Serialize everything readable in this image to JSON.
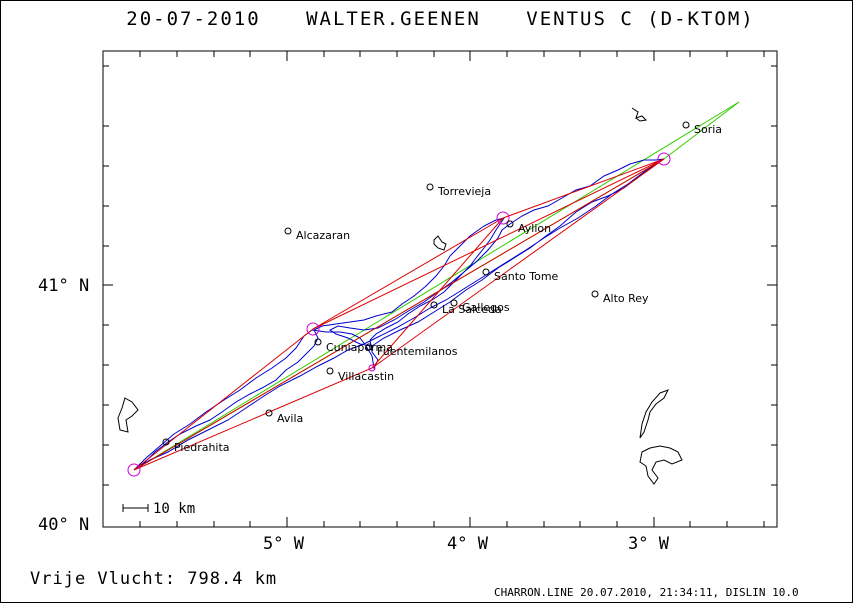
{
  "header": {
    "date": "20-07-2010",
    "pilot": "WALTER.GEENEN",
    "glider": "VENTUS C (D-KTOM)"
  },
  "axes": {
    "lat_labels": [
      "41° N",
      "40° N"
    ],
    "lon_labels": [
      "5° W",
      "4° W",
      "3° W"
    ]
  },
  "scale_label": "10 km",
  "towns": [
    {
      "name": "Soria"
    },
    {
      "name": "Torrevieja"
    },
    {
      "name": "Aylion"
    },
    {
      "name": "Alcazaran"
    },
    {
      "name": "Santo Tome"
    },
    {
      "name": "Alto Rey"
    },
    {
      "name": "La Salceda"
    },
    {
      "name": "Gallegos"
    },
    {
      "name": "Cuniaporma"
    },
    {
      "name": "Fuentemilanos"
    },
    {
      "name": "Villacastin"
    },
    {
      "name": "Avila"
    },
    {
      "name": "Piedrahita"
    }
  ],
  "colors": {
    "track": "#0000cc",
    "task": "#dd0000",
    "free": "#33cc00",
    "turnpoint": "#cc00cc"
  },
  "footer": {
    "distance_label": "Vrije Vlucht:  798.4 km",
    "file_info": "CHARRON.LINE 20.07.2010, 21:34:11, DISLIN 10.0"
  }
}
